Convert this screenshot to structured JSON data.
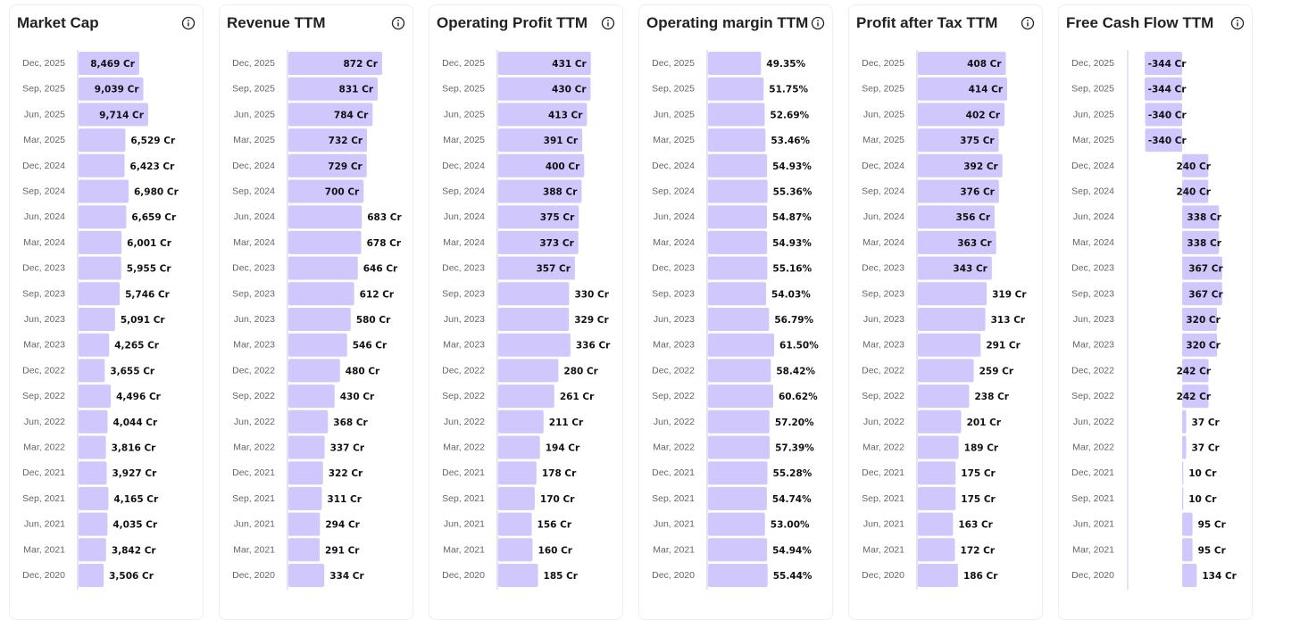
{
  "colors": {
    "bar": "#d0c8fd",
    "axis": "#d8dcef",
    "text": "#111111",
    "date": "#666666"
  },
  "dates": [
    "Dec, 2025",
    "Sep, 2025",
    "Jun, 2025",
    "Mar, 2025",
    "Dec, 2024",
    "Sep, 2024",
    "Jun, 2024",
    "Mar, 2024",
    "Dec, 2023",
    "Sep, 2023",
    "Jun, 2023",
    "Mar, 2023",
    "Dec, 2022",
    "Sep, 2022",
    "Jun, 2022",
    "Mar, 2022",
    "Dec, 2021",
    "Sep, 2021",
    "Jun, 2021",
    "Mar, 2021",
    "Dec, 2020"
  ],
  "chart_data": [
    {
      "type": "bar",
      "orientation": "horizontal",
      "title": "Market Cap",
      "info_icon": "info-icon",
      "unit": "Cr",
      "xlim": [
        0,
        16200
      ],
      "values": [
        8469,
        9039,
        9714,
        6529,
        6423,
        6980,
        6659,
        6001,
        5955,
        5746,
        5091,
        4265,
        3655,
        4496,
        4044,
        3816,
        3927,
        4165,
        4035,
        3842,
        3506
      ],
      "labels": [
        "8,469 Cr",
        "9,039 Cr",
        "9,714 Cr",
        "6,529 Cr",
        "6,423 Cr",
        "6,980 Cr",
        "6,659 Cr",
        "6,001 Cr",
        "5,955 Cr",
        "5,746 Cr",
        "5,091 Cr",
        "4,265 Cr",
        "3,655 Cr",
        "4,496 Cr",
        "4,044 Cr",
        "3,816 Cr",
        "3,927 Cr",
        "4,165 Cr",
        "4,035 Cr",
        "3,842 Cr",
        "3,506 Cr"
      ]
    },
    {
      "type": "bar",
      "orientation": "horizontal",
      "title": "Revenue TTM",
      "info_icon": "info-icon",
      "unit": "Cr",
      "xlim": [
        0,
        1080
      ],
      "values": [
        872,
        831,
        784,
        732,
        729,
        700,
        683,
        678,
        646,
        612,
        580,
        546,
        480,
        430,
        368,
        337,
        322,
        311,
        294,
        291,
        334
      ],
      "labels": [
        "872 Cr",
        "831 Cr",
        "784 Cr",
        "732 Cr",
        "729 Cr",
        "700 Cr",
        "683 Cr",
        "678 Cr",
        "646 Cr",
        "612 Cr",
        "580 Cr",
        "546 Cr",
        "480 Cr",
        "430 Cr",
        "368 Cr",
        "337 Cr",
        "322 Cr",
        "311 Cr",
        "294 Cr",
        "291 Cr",
        "334 Cr"
      ]
    },
    {
      "type": "bar",
      "orientation": "horizontal",
      "title": "Operating Profit TTM",
      "info_icon": "info-icon",
      "unit": "Cr",
      "xlim": [
        0,
        540
      ],
      "values": [
        431,
        430,
        413,
        391,
        400,
        388,
        375,
        373,
        357,
        330,
        329,
        336,
        280,
        261,
        211,
        194,
        178,
        170,
        156,
        160,
        185
      ],
      "labels": [
        "431 Cr",
        "430 Cr",
        "413 Cr",
        "391 Cr",
        "400 Cr",
        "388 Cr",
        "375 Cr",
        "373 Cr",
        "357 Cr",
        "330 Cr",
        "329 Cr",
        "336 Cr",
        "280 Cr",
        "261 Cr",
        "211 Cr",
        "194 Cr",
        "178 Cr",
        "170 Cr",
        "156 Cr",
        "160 Cr",
        "185 Cr"
      ]
    },
    {
      "type": "bar",
      "orientation": "horizontal",
      "title": "Operating margin TTM",
      "info_icon": "info-icon",
      "unit": "%",
      "xlim": [
        0,
        108
      ],
      "values": [
        49.35,
        51.75,
        52.69,
        53.46,
        54.93,
        55.36,
        54.87,
        54.93,
        55.16,
        54.03,
        56.79,
        61.5,
        58.42,
        60.62,
        57.2,
        57.39,
        55.28,
        54.74,
        53.0,
        54.94,
        55.44
      ],
      "labels": [
        "49.35%",
        "51.75%",
        "52.69%",
        "53.46%",
        "54.93%",
        "55.36%",
        "54.87%",
        "54.93%",
        "55.16%",
        "54.03%",
        "56.79%",
        "61.50%",
        "58.42%",
        "60.62%",
        "57.20%",
        "57.39%",
        "55.28%",
        "54.74%",
        "53.00%",
        "54.94%",
        "55.44%"
      ]
    },
    {
      "type": "bar",
      "orientation": "horizontal",
      "title": "Profit after Tax TTM",
      "info_icon": "info-icon",
      "unit": "Cr",
      "xlim": [
        0,
        538
      ],
      "values": [
        408,
        414,
        402,
        375,
        392,
        376,
        356,
        363,
        343,
        319,
        313,
        291,
        259,
        238,
        201,
        189,
        175,
        175,
        163,
        172,
        186
      ],
      "labels": [
        "408 Cr",
        "414 Cr",
        "402 Cr",
        "375 Cr",
        "392 Cr",
        "376 Cr",
        "356 Cr",
        "363 Cr",
        "343 Cr",
        "319 Cr",
        "313 Cr",
        "291 Cr",
        "259 Cr",
        "238 Cr",
        "201 Cr",
        "189 Cr",
        "175 Cr",
        "175 Cr",
        "163 Cr",
        "172 Cr",
        "186 Cr"
      ]
    },
    {
      "type": "bar",
      "orientation": "horizontal",
      "title": "Free Cash Flow TTM",
      "info_icon": "info-icon",
      "unit": "Cr",
      "xlim": [
        -500,
        565
      ],
      "values": [
        -344,
        -344,
        -340,
        -340,
        240,
        240,
        338,
        338,
        367,
        367,
        320,
        320,
        242,
        242,
        37,
        37,
        10,
        10,
        95,
        95,
        134
      ],
      "labels": [
        "-344 Cr",
        "-344 Cr",
        "-340 Cr",
        "-340 Cr",
        "240 Cr",
        "240 Cr",
        "338 Cr",
        "338 Cr",
        "367 Cr",
        "367 Cr",
        "320 Cr",
        "320 Cr",
        "242 Cr",
        "242 Cr",
        "37 Cr",
        "37 Cr",
        "10 Cr",
        "10 Cr",
        "95 Cr",
        "95 Cr",
        "134 Cr"
      ]
    }
  ]
}
